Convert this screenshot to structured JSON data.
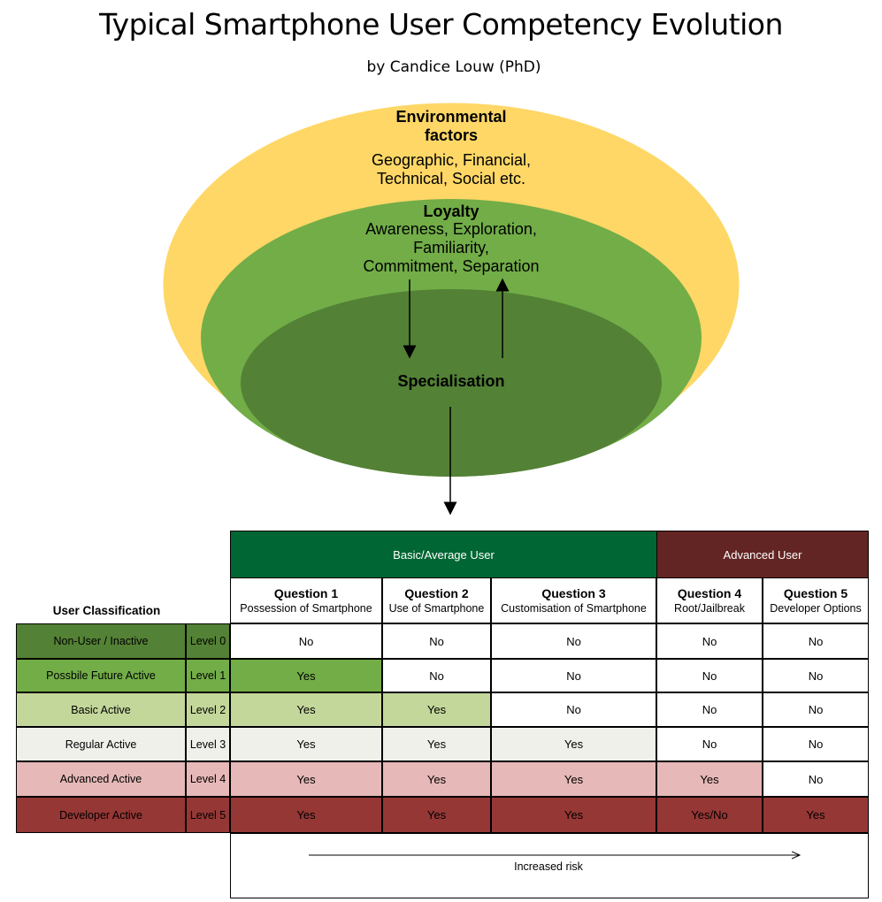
{
  "title": "Typical Smartphone User  Competency Evolution",
  "subtitle": "by Candice Louw (PhD)",
  "onion": {
    "outer_heading_line1": "Environmental",
    "outer_heading_line2": "factors",
    "outer_text_line1": "Geographic, Financial,",
    "outer_text_line2": "Technical, Social etc.",
    "middle_heading": "Loyalty",
    "middle_text_line1": "Awareness, Exploration,",
    "middle_text_line2": "Familiarity,",
    "middle_text_line3": "Commitment, Separation",
    "inner_heading": "Specialisation"
  },
  "colors": {
    "outer": "#fed766",
    "middle": "#72ad47",
    "inner": "#538135",
    "basic_header": "#006633",
    "advanced_header": "#632523",
    "level0": "#538135",
    "level1": "#72ad47",
    "level2": "#c4d79b",
    "level3": "#eff0ea",
    "level4": "#e6b8b7",
    "level5": "#953735"
  },
  "table": {
    "group_basic": "Basic/Average User",
    "group_advanced": "Advanced User",
    "classification_header": "User Classification",
    "questions": [
      {
        "q": "Question 1",
        "d": "Possession of Smartphone"
      },
      {
        "q": "Question 2",
        "d": "Use of Smartphone"
      },
      {
        "q": "Question 3",
        "d": "Customisation of Smartphone"
      },
      {
        "q": "Question 4",
        "d": "Root/Jailbreak"
      },
      {
        "q": "Question 5",
        "d": "Developer Options"
      }
    ],
    "rows": [
      {
        "name": "Non-User / Inactive",
        "level": "Level 0",
        "answers": [
          "No",
          "No",
          "No",
          "No",
          "No"
        ]
      },
      {
        "name": "Possbile Future Active",
        "level": "Level 1",
        "answers": [
          "Yes",
          "No",
          "No",
          "No",
          "No"
        ]
      },
      {
        "name": "Basic Active",
        "level": "Level 2",
        "answers": [
          "Yes",
          "Yes",
          "No",
          "No",
          "No"
        ]
      },
      {
        "name": "Regular Active",
        "level": "Level 3",
        "answers": [
          "Yes",
          "Yes",
          "Yes",
          "No",
          "No"
        ]
      },
      {
        "name": "Advanced Active",
        "level": "Level 4",
        "answers": [
          "Yes",
          "Yes",
          "Yes",
          "Yes",
          "No"
        ]
      },
      {
        "name": "Developer Active",
        "level": "Level 5",
        "answers": [
          "Yes",
          "Yes",
          "Yes",
          "Yes/No",
          "Yes"
        ]
      }
    ],
    "risk_label": "Increased risk"
  }
}
